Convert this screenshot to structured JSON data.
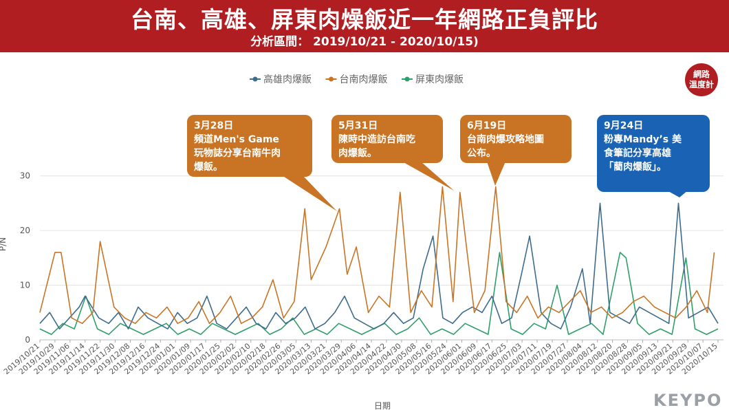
{
  "header": {
    "title": "台南、高雄、屏東肉燥飯近一年網路正負評比",
    "subtitle": "分析區間： 2019/10/21 - 2020/10/15)"
  },
  "badge": {
    "line1": "網路",
    "line2": "溫度計"
  },
  "brand": "KEYPO",
  "annotations": [
    {
      "id": "a1",
      "text": "3月28日\n頻道Men's Game\n玩物誌分享台南牛肉\n爆飯。",
      "color": "#c87424"
    },
    {
      "id": "a2",
      "text": "5月31日\n陳時中造訪台南吃\n肉爆飯。",
      "color": "#c87424"
    },
    {
      "id": "a3",
      "text": "6月19日\n台南肉爆攻略地圖\n公布。",
      "color": "#c87424"
    },
    {
      "id": "a4",
      "text": "9月24日\n粉專Mandy’s 美\n食筆記分享高雄\n「藺肉爆飯」。",
      "color": "#1a63b4"
    }
  ],
  "chart_data": {
    "type": "line",
    "title": "",
    "xlabel": "日期",
    "ylabel": "P/N",
    "ylim": [
      0,
      35
    ],
    "yticks": [
      0,
      10,
      20,
      30
    ],
    "grid": true,
    "legend_position": "top-center",
    "x_tick_labels": [
      "2019/10/21",
      "2019/10/29",
      "2019/11/06",
      "2019/11/14",
      "2019/11/22",
      "2019/11/30",
      "2019/12/08",
      "2019/12/16",
      "2019/12/24",
      "2020/01/01",
      "2020/01/09",
      "2020/01/17",
      "2020/01/25",
      "2020/02/02",
      "2020/02/10",
      "2020/02/18",
      "2020/02/26",
      "2020/03/05",
      "2020/03/13",
      "2020/03/21",
      "2020/03/29",
      "2020/04/06",
      "2020/04/14",
      "2020/04/22",
      "2020/04/30",
      "2020/05/08",
      "2020/05/16",
      "2020/05/24",
      "2020/06/01",
      "2020/06/09",
      "2020/06/17",
      "2020/06/25",
      "2020/07/03",
      "2020/07/11",
      "2020/07/19",
      "2020/07/27",
      "2020/08/04",
      "2020/08/12",
      "2020/08/20",
      "2020/08/28",
      "2020/09/05",
      "2020/09/13",
      "2020/09/21",
      "2020/09/29",
      "2020/10/07",
      "2020/10/15"
    ],
    "series": [
      {
        "name": "高雄肉爆飯",
        "color": "#3d6b8c",
        "values": [
          3,
          5,
          2,
          4,
          6,
          8,
          4,
          3,
          5,
          2,
          6,
          4,
          3,
          2,
          5,
          3,
          4,
          8,
          3,
          2,
          4,
          6,
          3,
          2,
          5,
          3,
          4,
          6,
          2,
          3,
          5,
          8,
          4,
          3,
          2,
          3,
          5,
          3,
          4,
          13,
          19,
          4,
          3,
          5,
          6,
          5,
          8,
          3,
          4,
          12,
          4,
          5,
          3,
          2,
          6,
          4,
          3,
          25,
          5,
          4,
          3,
          6,
          5,
          4,
          3,
          2,
          4,
          5,
          6,
          3
        ],
        "peaks": [
          {
            "x": "2019/11/14",
            "y": 8
          },
          {
            "x": "2020/07/07",
            "y": 19
          },
          {
            "x": "2020/08/04",
            "y": 13
          },
          {
            "x": "2020/09/24",
            "y": 25
          }
        ]
      },
      {
        "name": "台南肉爆飯",
        "color": "#c87424",
        "values": [
          5,
          3,
          16,
          4,
          3,
          5,
          18,
          6,
          4,
          3,
          5,
          4,
          6,
          3,
          4,
          7,
          3,
          5,
          8,
          3,
          4,
          6,
          11,
          4,
          7,
          24,
          5,
          17,
          6,
          12,
          4,
          5,
          8,
          6,
          27,
          5,
          9,
          6,
          28,
          7,
          8,
          5,
          9,
          6,
          7,
          5,
          8,
          4,
          6,
          5,
          7,
          9,
          5,
          6,
          4,
          5,
          7,
          8,
          6,
          5,
          4,
          6,
          9,
          5,
          16
        ],
        "peaks": [
          {
            "x": "2019/10/29",
            "y": 16
          },
          {
            "x": "2019/11/22",
            "y": 18
          },
          {
            "x": "2020/03/13",
            "y": 11
          },
          {
            "x": "2020/03/28",
            "y": 24
          },
          {
            "x": "2020/04/06",
            "y": 17
          },
          {
            "x": "2020/05/31",
            "y": 27
          },
          {
            "x": "2020/06/19",
            "y": 28
          },
          {
            "x": "2020/10/13",
            "y": 16
          }
        ]
      },
      {
        "name": "屏東肉爆飯",
        "color": "#2e9e6a",
        "values": [
          2,
          1,
          3,
          2,
          8,
          2,
          1,
          3,
          2,
          1,
          2,
          3,
          1,
          2,
          1,
          3,
          2,
          1,
          2,
          3,
          1,
          2,
          4,
          1,
          2,
          1,
          3,
          2,
          1,
          2,
          3,
          1,
          2,
          4,
          1,
          2,
          1,
          3,
          2,
          1,
          16,
          2,
          1,
          3,
          2,
          10,
          1,
          2,
          3,
          1,
          2,
          15,
          3,
          1,
          2,
          1,
          3,
          2,
          1,
          2
        ],
        "peaks": [
          {
            "x": "2020/08/24",
            "y": 16
          },
          {
            "x": "2020/09/28",
            "y": 15
          }
        ]
      }
    ]
  }
}
